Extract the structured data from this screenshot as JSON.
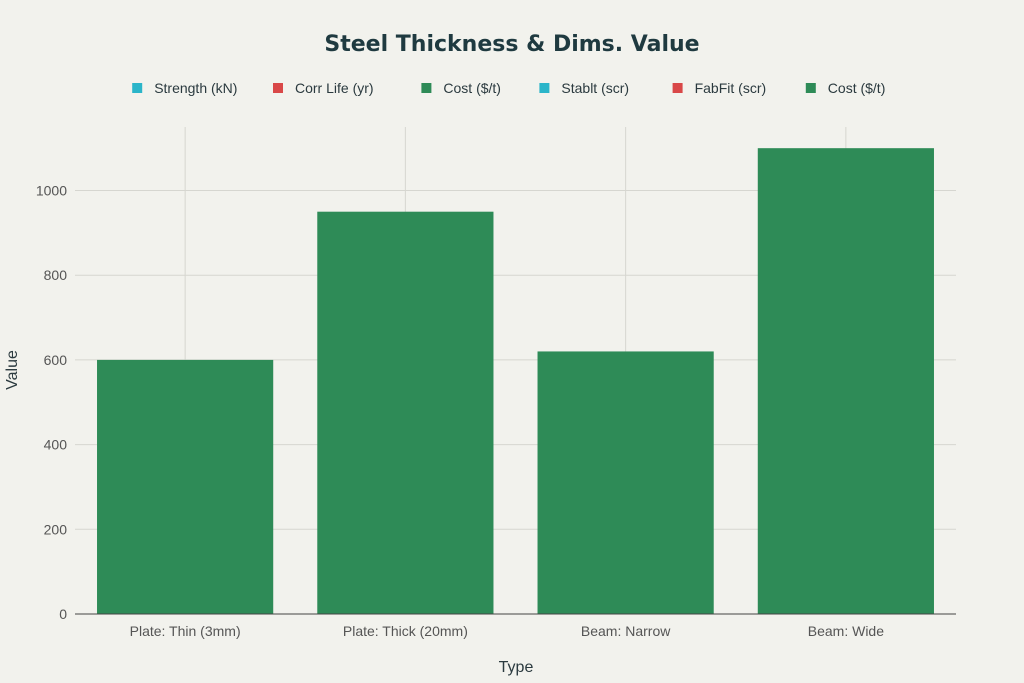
{
  "chart_data": {
    "type": "bar",
    "title": "Steel Thickness & Dims. Value",
    "xlabel": "Type",
    "ylabel": "Value",
    "categories": [
      "Plate: Thin (3mm)",
      "Plate: Thick (20mm)",
      "Beam: Narrow",
      "Beam: Wide"
    ],
    "ylim": [
      0,
      1150
    ],
    "yticks": [
      0,
      200,
      400,
      600,
      800,
      1000
    ],
    "grid": true,
    "legend_position": "top-center",
    "series": [
      {
        "name": "Strength (kN)",
        "color": "#2bb5c9",
        "values": [
          0,
          0,
          0,
          0
        ]
      },
      {
        "name": "Corr Life (yr)",
        "color": "#d94848",
        "values": [
          0,
          0,
          0,
          0
        ]
      },
      {
        "name": "Cost ($/t)",
        "color": "#2e8b57",
        "values": [
          600,
          950,
          620,
          1100
        ]
      },
      {
        "name": "Stablt (scr)",
        "color": "#2bb5c9",
        "values": [
          0,
          0,
          0,
          0
        ]
      },
      {
        "name": "FabFit (scr)",
        "color": "#d94848",
        "values": [
          0,
          0,
          0,
          0
        ]
      },
      {
        "name": "Cost ($/t)",
        "color": "#2e8b57",
        "values": [
          0,
          0,
          0,
          0
        ]
      }
    ]
  }
}
